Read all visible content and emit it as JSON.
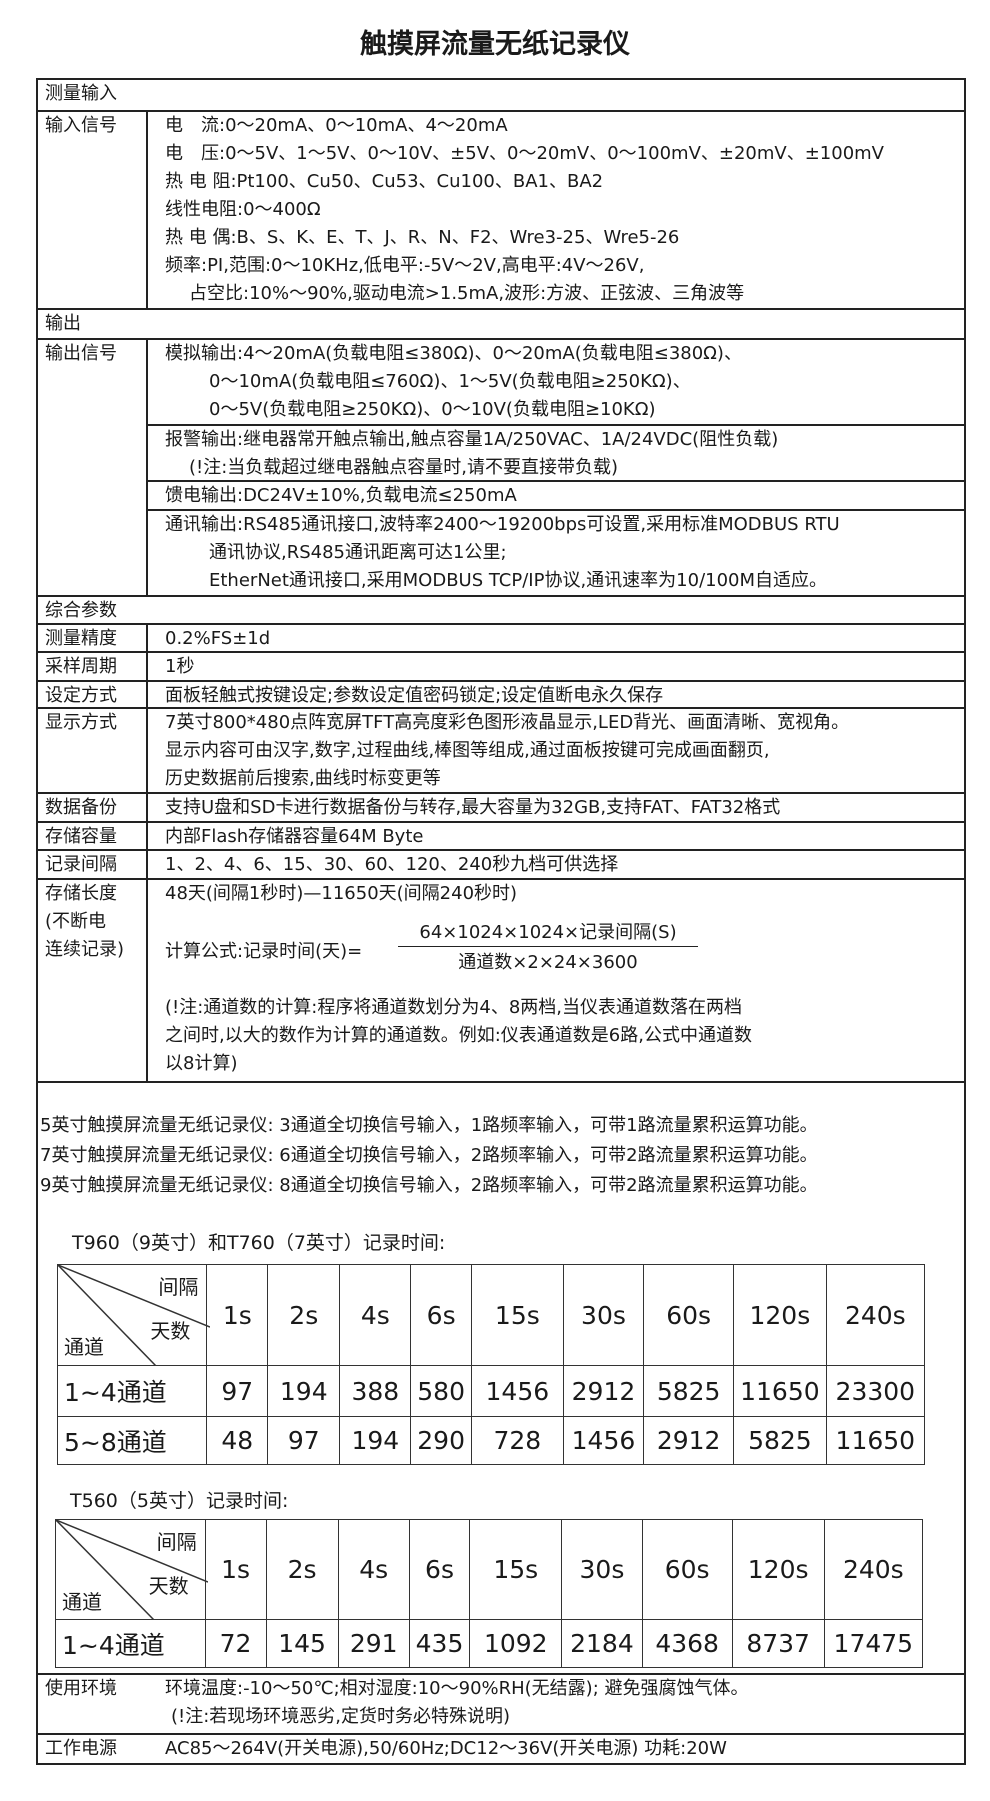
{
  "title": "触摸屏流量无纸记录仪",
  "sections": {
    "input_header": "测量输入",
    "output_header": "输出",
    "general_header": "综合参数"
  },
  "input_signal": {
    "label": "输入信号",
    "lines": [
      "电　流:0～20mA、0～10mA、4～20mA",
      "电　压:0～5V、1～5V、0～10V、±5V、0～20mV、0～100mV、±20mV、±100mV",
      "热 电 阻:Pt100、Cu50、Cu53、Cu100、BA1、BA2",
      "线性电阻:0～400Ω",
      "热 电 偶:B、S、K、E、T、J、R、N、F2、Wre3-25、Wre5-26",
      "频率:PI,范围:0～10KHz,低电平:-5V～2V,高电平:4V～26V,",
      "占空比:10%～90%,驱动电流>1.5mA,波形:方波、正弦波、三角波等"
    ]
  },
  "output_signal": {
    "label": "输出信号",
    "analog": [
      "模拟输出:4～20mA(负载电阻≤380Ω)、0～20mA(负载电阻≤380Ω)、",
      "0～10mA(负载电阻≤760Ω)、1～5V(负载电阻≥250KΩ)、",
      "0～5V(负载电阻≥250KΩ)、0～10V(负载电阻≥10KΩ)"
    ],
    "alarm": [
      "报警输出:继电器常开触点输出,触点容量1A/250VAC、1A/24VDC(阻性负载)",
      "(!注:当负载超过继电器触点容量时,请不要直接带负载)"
    ],
    "feed": "馈电输出:DC24V±10%,负载电流≤250mA",
    "comm": [
      "通讯输出:RS485通讯接口,波特率2400～19200bps可设置,采用标准MODBUS RTU",
      "通讯协议,RS485通讯距离可达1公里;",
      "EtherNet通讯接口,采用MODBUS TCP/IP协议,通讯速率为10/100M自适应。"
    ]
  },
  "general": [
    {
      "label": "测量精度",
      "lines": [
        "0.2%FS±1d"
      ]
    },
    {
      "label": "采样周期",
      "lines": [
        "1秒"
      ]
    },
    {
      "label": "设定方式",
      "lines": [
        "面板轻触式按键设定;参数设定值密码锁定;设定值断电永久保存"
      ]
    },
    {
      "label": "显示方式",
      "lines": [
        "7英寸800*480点阵宽屏TFT高亮度彩色图形液晶显示,LED背光、画面清晰、宽视角。",
        "显示内容可由汉字,数字,过程曲线,棒图等组成,通过面板按键可完成画面翻页,",
        "历史数据前后搜索,曲线时标变更等"
      ]
    },
    {
      "label": "数据备份",
      "lines": [
        "支持U盘和SD卡进行数据备份与转存,最大容量为32GB,支持FAT、FAT32格式"
      ]
    },
    {
      "label": "存储容量",
      "lines": [
        "内部Flash存储器容量64M Byte"
      ]
    },
    {
      "label": "记录间隔",
      "lines": [
        "1、2、4、6、15、30、60、120、240秒九档可供选择"
      ]
    }
  ],
  "storage": {
    "label_lines": [
      "存储长度",
      "(不断电",
      "连续记录)"
    ],
    "range": "48天(间隔1秒时)—11650天(间隔240秒时)",
    "formula_label": "计算公式:记录时间(天)=",
    "numerator": "64×1024×1024×记录间隔(S)",
    "denominator": "通道数×2×24×3600",
    "note": [
      "(!注:通道数的计算:程序将通道数划分为4、8两档,当仪表通道数落在两档",
      "之间时,以大的数作为计算的通道数。例如:仪表通道数是6路,公式中通道数",
      "以8计算)"
    ]
  },
  "models": [
    "5英寸触摸屏流量无纸记录仪: 3通道全切换信号输入，1路频率输入，可带1路流量累积运算功能。",
    "7英寸触摸屏流量无纸记录仪: 6通道全切换信号输入，2路频率输入，可带2路流量累积运算功能。",
    "9英寸触摸屏流量无纸记录仪: 8通道全切换信号输入，2路频率输入，可带2路流量累积运算功能。"
  ],
  "table1": {
    "caption": "T960（9英寸）和T760（7英寸）记录时间:",
    "corner": {
      "top": "间隔",
      "mid": "天数",
      "bottom": "通道"
    },
    "intervals": [
      "1s",
      "2s",
      "4s",
      "6s",
      "15s",
      "30s",
      "60s",
      "120s",
      "240s"
    ],
    "rows": [
      {
        "channels": "1~4通道",
        "days": [
          "97",
          "194",
          "388",
          "580",
          "1456",
          "2912",
          "5825",
          "11650",
          "23300"
        ]
      },
      {
        "channels": "5~8通道",
        "days": [
          "48",
          "97",
          "194",
          "290",
          "728",
          "1456",
          "2912",
          "5825",
          "11650"
        ]
      }
    ]
  },
  "table2": {
    "caption": "T560（5英寸）记录时间:",
    "corner": {
      "top": "间隔",
      "mid": "天数",
      "bottom": "通道"
    },
    "intervals": [
      "1s",
      "2s",
      "4s",
      "6s",
      "15s",
      "30s",
      "60s",
      "120s",
      "240s"
    ],
    "rows": [
      {
        "channels": "1~4通道",
        "days": [
          "72",
          "145",
          "291",
          "435",
          "1092",
          "2184",
          "4368",
          "8737",
          "17475"
        ]
      }
    ]
  },
  "environment": {
    "label": "使用环境",
    "lines": [
      "环境温度:-10～50℃;相对湿度:10～90%RH(无结露); 避免强腐蚀气体。",
      "(!注:若现场环境恶劣,定货时务必特殊说明)"
    ]
  },
  "power": {
    "label": "工作电源",
    "text": "AC85～264V(开关电源),50/60Hz;DC12～36V(开关电源) 功耗:20W"
  }
}
